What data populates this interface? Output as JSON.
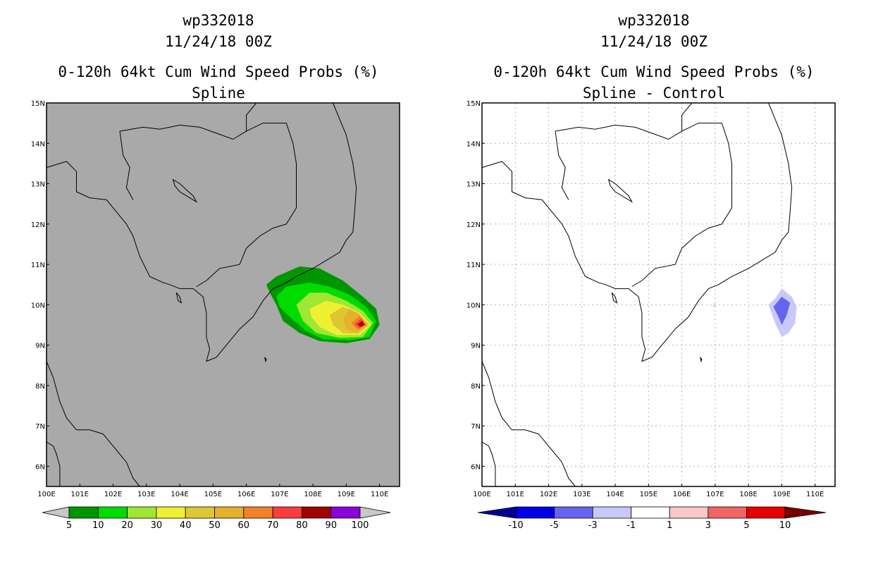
{
  "chart_data": [
    {
      "type": "heatmap",
      "title_lines": [
        "wp332018",
        "11/24/18 00Z",
        "0-120h 64kt Cum Wind Speed Probs (%)",
        "Spline"
      ],
      "xlabel": "",
      "ylabel": "",
      "xlim": [
        100,
        110.6
      ],
      "ylim": [
        5.5,
        15
      ],
      "x_tick_labels": [
        "100E",
        "101E",
        "102E",
        "103E",
        "104E",
        "105E",
        "106E",
        "107E",
        "108E",
        "109E",
        "110E"
      ],
      "y_tick_labels": [
        "6N",
        "7N",
        "8N",
        "9N",
        "10N",
        "11N",
        "12N",
        "13N",
        "14N",
        "15N"
      ],
      "background": "#a9a9a9",
      "grid": false,
      "colorbar": {
        "labels": [
          "5",
          "10",
          "20",
          "30",
          "40",
          "50",
          "60",
          "70",
          "80",
          "90",
          "100"
        ],
        "colors": [
          "#009600",
          "#00dc00",
          "#a0e632",
          "#f0f032",
          "#dcc832",
          "#e6af2d",
          "#f08228",
          "#fa3c3c",
          "#a00000",
          "#8c00dc"
        ],
        "low_extend": "#c8c8c8",
        "high_extend": "#c8c8c8"
      },
      "contours": [
        {
          "level": "5-10",
          "color": "#009600",
          "polygon": [
            [
              106.6,
              10.5
            ],
            [
              106.9,
              10.7
            ],
            [
              107.6,
              10.95
            ],
            [
              108.2,
              10.9
            ],
            [
              108.9,
              10.6
            ],
            [
              109.5,
              10.2
            ],
            [
              109.9,
              9.9
            ],
            [
              110.0,
              9.5
            ],
            [
              109.7,
              9.15
            ],
            [
              109.0,
              9.05
            ],
            [
              108.2,
              9.1
            ],
            [
              107.6,
              9.3
            ],
            [
              107.1,
              9.6
            ],
            [
              106.9,
              10.0
            ],
            [
              106.7,
              10.3
            ]
          ]
        },
        {
          "level": "10-20",
          "color": "#00dc00",
          "polygon": [
            [
              106.9,
              10.2
            ],
            [
              107.2,
              10.45
            ],
            [
              107.9,
              10.55
            ],
            [
              108.5,
              10.45
            ],
            [
              109.1,
              10.25
            ],
            [
              109.6,
              9.95
            ],
            [
              109.9,
              9.6
            ],
            [
              109.7,
              9.2
            ],
            [
              109.1,
              9.12
            ],
            [
              108.3,
              9.15
            ],
            [
              107.8,
              9.35
            ],
            [
              107.3,
              9.7
            ],
            [
              107.0,
              9.95
            ]
          ]
        },
        {
          "level": "20-30",
          "color": "#a0e632",
          "polygon": [
            [
              107.5,
              10.0
            ],
            [
              107.9,
              10.3
            ],
            [
              108.4,
              10.3
            ],
            [
              109.0,
              10.1
            ],
            [
              109.5,
              9.85
            ],
            [
              109.8,
              9.55
            ],
            [
              109.5,
              9.2
            ],
            [
              108.8,
              9.18
            ],
            [
              108.1,
              9.3
            ],
            [
              107.7,
              9.6
            ]
          ]
        },
        {
          "level": "30-40",
          "color": "#f0f032",
          "polygon": [
            [
              107.9,
              9.9
            ],
            [
              108.4,
              10.1
            ],
            [
              108.9,
              10.0
            ],
            [
              109.4,
              9.8
            ],
            [
              109.75,
              9.5
            ],
            [
              109.4,
              9.25
            ],
            [
              108.7,
              9.25
            ],
            [
              108.2,
              9.45
            ],
            [
              107.95,
              9.7
            ]
          ]
        },
        {
          "level": "40-50",
          "color": "#dcc832",
          "polygon": [
            [
              108.5,
              9.75
            ],
            [
              108.9,
              9.95
            ],
            [
              109.35,
              9.8
            ],
            [
              109.7,
              9.5
            ],
            [
              109.35,
              9.28
            ],
            [
              108.9,
              9.3
            ],
            [
              108.6,
              9.5
            ]
          ]
        },
        {
          "level": "50-60",
          "color": "#e6af2d",
          "polygon": [
            [
              108.9,
              9.65
            ],
            [
              109.1,
              9.9
            ],
            [
              109.4,
              9.75
            ],
            [
              109.65,
              9.5
            ],
            [
              109.3,
              9.32
            ],
            [
              109.0,
              9.4
            ]
          ]
        },
        {
          "level": "60-70",
          "color": "#f08228",
          "polygon": [
            [
              109.15,
              9.55
            ],
            [
              109.4,
              9.72
            ],
            [
              109.6,
              9.5
            ],
            [
              109.35,
              9.38
            ]
          ]
        },
        {
          "level": "70-80",
          "color": "#fa3c3c",
          "polygon": [
            [
              109.25,
              9.52
            ],
            [
              109.45,
              9.66
            ],
            [
              109.58,
              9.5
            ],
            [
              109.38,
              9.42
            ]
          ]
        },
        {
          "level": "80-90",
          "color": "#a00000",
          "polygon": [
            [
              109.35,
              9.52
            ],
            [
              109.48,
              9.6
            ],
            [
              109.55,
              9.5
            ],
            [
              109.42,
              9.46
            ]
          ]
        }
      ]
    },
    {
      "type": "heatmap",
      "title_lines": [
        "wp332018",
        "11/24/18 00Z",
        "0-120h 64kt Cum Wind Speed Probs (%)",
        "Spline - Control"
      ],
      "xlabel": "",
      "ylabel": "",
      "xlim": [
        100,
        110.6
      ],
      "ylim": [
        5.5,
        15
      ],
      "x_tick_labels": [
        "100E",
        "101E",
        "102E",
        "103E",
        "104E",
        "105E",
        "106E",
        "107E",
        "108E",
        "109E",
        "110E"
      ],
      "y_tick_labels": [
        "6N",
        "7N",
        "8N",
        "9N",
        "10N",
        "11N",
        "12N",
        "13N",
        "14N",
        "15N"
      ],
      "background": "#ffffff",
      "grid": true,
      "colorbar": {
        "labels": [
          "-10",
          "-5",
          "-3",
          "-1",
          "1",
          "3",
          "5",
          "10"
        ],
        "colors": [
          "#0000e6",
          "#6464f0",
          "#c8c8fa",
          "#ffffff",
          "#fac8c8",
          "#f06464",
          "#e60000"
        ],
        "low_extend": "#000096",
        "high_extend": "#780000"
      },
      "contours": [
        {
          "level": "-3 to -1",
          "color": "#c8c8fa",
          "polygon": [
            [
              108.6,
              10.0
            ],
            [
              108.8,
              10.15
            ],
            [
              109.0,
              10.4
            ],
            [
              109.3,
              10.2
            ],
            [
              109.45,
              9.95
            ],
            [
              109.4,
              9.55
            ],
            [
              109.2,
              9.3
            ],
            [
              109.0,
              9.2
            ],
            [
              108.8,
              9.55
            ]
          ]
        },
        {
          "level": "-5 to -3",
          "color": "#6464f0",
          "polygon": [
            [
              108.75,
              9.95
            ],
            [
              109.0,
              10.2
            ],
            [
              109.25,
              10.05
            ],
            [
              109.15,
              9.75
            ],
            [
              109.0,
              9.5
            ],
            [
              108.9,
              9.7
            ]
          ]
        },
        {
          "level": "1 to 3",
          "color": "#fac8c8",
          "polygon": [
            [
              106.93,
              9.98
            ],
            [
              106.98,
              10.05
            ],
            [
              107.03,
              9.98
            ],
            [
              106.98,
              9.93
            ]
          ]
        }
      ]
    }
  ],
  "coastline": [
    [
      [
        100.0,
        13.4
      ],
      [
        100.4,
        13.5
      ],
      [
        100.6,
        13.55
      ],
      [
        100.9,
        13.3
      ],
      [
        100.9,
        12.8
      ],
      [
        101.3,
        12.65
      ],
      [
        101.8,
        12.6
      ],
      [
        102.1,
        12.3
      ],
      [
        102.4,
        12.0
      ],
      [
        102.6,
        11.7
      ],
      [
        102.8,
        11.2
      ],
      [
        103.1,
        10.7
      ],
      [
        103.5,
        10.55
      ],
      [
        103.7,
        10.5
      ],
      [
        104.0,
        10.4
      ],
      [
        104.4,
        10.4
      ],
      [
        104.7,
        10.2
      ],
      [
        104.8,
        9.8
      ],
      [
        104.8,
        9.2
      ],
      [
        104.9,
        8.9
      ],
      [
        104.8,
        8.6
      ],
      [
        105.1,
        8.7
      ],
      [
        105.4,
        9.0
      ],
      [
        105.8,
        9.4
      ],
      [
        106.2,
        9.7
      ],
      [
        106.5,
        10.1
      ],
      [
        106.8,
        10.4
      ],
      [
        107.1,
        10.5
      ],
      [
        107.5,
        10.7
      ],
      [
        108.0,
        10.9
      ],
      [
        108.4,
        11.1
      ],
      [
        108.8,
        11.3
      ],
      [
        109.0,
        11.6
      ],
      [
        109.2,
        11.8
      ],
      [
        109.25,
        12.3
      ],
      [
        109.3,
        12.9
      ],
      [
        109.2,
        13.5
      ],
      [
        109.0,
        14.2
      ],
      [
        108.8,
        14.6
      ],
      [
        108.6,
        15.0
      ]
    ],
    [
      [
        100.0,
        8.6
      ],
      [
        100.2,
        8.2
      ],
      [
        100.4,
        7.6
      ],
      [
        100.6,
        7.2
      ],
      [
        100.9,
        6.9
      ],
      [
        101.3,
        6.9
      ],
      [
        101.7,
        6.8
      ],
      [
        102.1,
        6.4
      ],
      [
        102.4,
        6.1
      ],
      [
        102.6,
        5.7
      ],
      [
        102.8,
        5.5
      ]
    ],
    [
      [
        100.0,
        6.6
      ],
      [
        100.2,
        6.5
      ],
      [
        100.3,
        6.3
      ],
      [
        100.4,
        6.0
      ],
      [
        100.4,
        5.5
      ]
    ]
  ],
  "border": [
    [
      [
        102.2,
        14.3
      ],
      [
        102.9,
        14.4
      ],
      [
        103.4,
        14.35
      ],
      [
        104.0,
        14.45
      ],
      [
        104.6,
        14.4
      ],
      [
        105.1,
        14.25
      ],
      [
        105.6,
        14.1
      ],
      [
        106.0,
        14.3
      ],
      [
        106.5,
        14.5
      ],
      [
        107.2,
        14.5
      ],
      [
        107.4,
        14.0
      ],
      [
        107.5,
        13.5
      ],
      [
        107.5,
        13.0
      ],
      [
        107.5,
        12.4
      ],
      [
        107.2,
        12.0
      ],
      [
        106.8,
        11.9
      ],
      [
        106.4,
        11.7
      ],
      [
        106.0,
        11.4
      ],
      [
        105.8,
        11.0
      ],
      [
        105.2,
        10.9
      ],
      [
        104.8,
        10.6
      ],
      [
        104.5,
        10.45
      ]
    ],
    [
      [
        106.0,
        14.3
      ],
      [
        106.0,
        14.7
      ],
      [
        106.3,
        15.0
      ]
    ],
    [
      [
        102.2,
        14.3
      ],
      [
        102.3,
        13.7
      ],
      [
        102.5,
        13.4
      ],
      [
        102.4,
        12.9
      ],
      [
        102.6,
        12.6
      ]
    ]
  ],
  "lakes": [
    [
      [
        103.8,
        13.1
      ],
      [
        104.0,
        13.0
      ],
      [
        104.2,
        12.85
      ],
      [
        104.4,
        12.7
      ],
      [
        104.5,
        12.55
      ],
      [
        104.3,
        12.65
      ],
      [
        104.0,
        12.8
      ],
      [
        103.85,
        12.95
      ]
    ]
  ],
  "islands": [
    [
      [
        103.9,
        10.3
      ],
      [
        104.0,
        10.2
      ],
      [
        104.05,
        10.05
      ],
      [
        103.95,
        10.1
      ]
    ],
    [
      [
        106.55,
        8.7
      ],
      [
        106.6,
        8.65
      ],
      [
        106.58,
        8.6
      ]
    ]
  ]
}
